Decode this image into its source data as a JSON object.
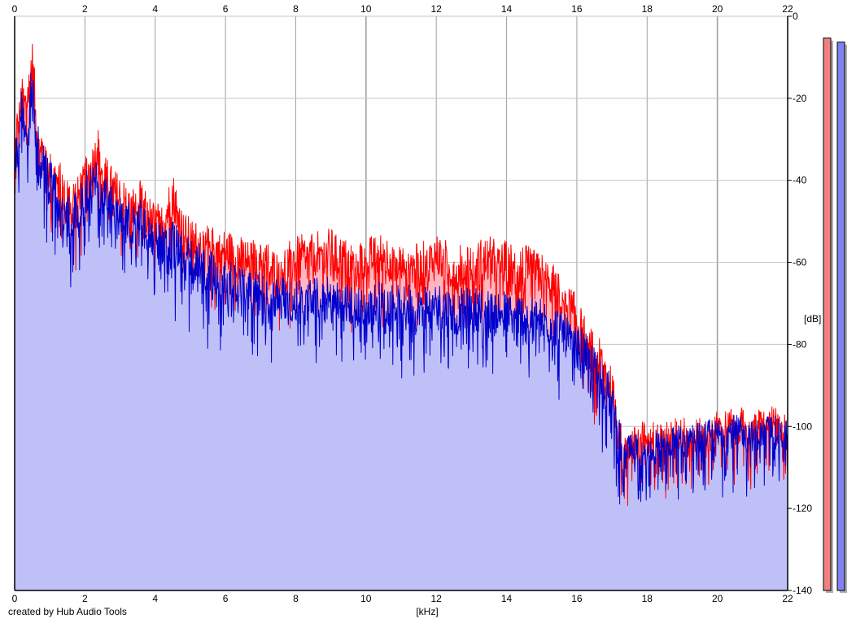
{
  "credit": "created by Hub Audio Tools",
  "chart_data": {
    "type": "area",
    "xlabel": "[kHz]",
    "ylabel": "[dB]",
    "xlim": [
      0,
      22
    ],
    "ylim": [
      -140,
      0
    ],
    "x_ticks": [
      0,
      2,
      4,
      6,
      8,
      10,
      12,
      14,
      16,
      18,
      20,
      22
    ],
    "y_ticks": [
      0,
      -20,
      -40,
      -60,
      -80,
      -100,
      -120,
      -140
    ],
    "grid": true,
    "series": [
      {
        "color": "#ff0000",
        "fill": "#ffb6c1",
        "x": [
          0,
          0.1,
          0.2,
          0.3,
          0.4,
          0.5,
          0.6,
          0.7,
          0.8,
          0.9,
          1.0,
          1.2,
          1.4,
          1.6,
          1.8,
          2.0,
          2.2,
          2.35,
          2.5,
          2.7,
          3.0,
          3.3,
          3.6,
          3.9,
          4.2,
          4.5,
          4.8,
          5.1,
          5.5,
          5.9,
          6.3,
          6.7,
          7.0,
          7.5,
          8.0,
          8.5,
          9.0,
          9.5,
          10.0,
          10.5,
          11.0,
          11.5,
          12.0,
          12.5,
          13.0,
          13.5,
          14.0,
          14.5,
          15.0,
          15.3,
          15.6,
          15.9,
          16.2,
          16.5,
          16.8,
          17.0,
          17.2,
          17.3,
          17.4,
          17.6,
          18.0,
          18.5,
          19.0,
          19.5,
          20.0,
          20.5,
          21.0,
          21.5,
          22.0
        ],
        "values": [
          -32,
          -25,
          -20,
          -22,
          -18,
          -10,
          -22,
          -28,
          -33,
          -36,
          -38,
          -40,
          -42,
          -45,
          -43,
          -40,
          -37,
          -31,
          -38,
          -41,
          -44,
          -47,
          -45,
          -50,
          -51,
          -43,
          -53,
          -55,
          -56,
          -57,
          -58,
          -60,
          -59,
          -62,
          -59,
          -58,
          -57,
          -60,
          -59,
          -58,
          -60,
          -61,
          -58,
          -61,
          -60,
          -59,
          -60,
          -61,
          -63,
          -65,
          -68,
          -72,
          -78,
          -83,
          -85,
          -92,
          -100,
          -108,
          -103,
          -104,
          -102,
          -103,
          -101,
          -102,
          -100,
          -99,
          -100,
          -99,
          -100
        ]
      },
      {
        "color": "#0000cc",
        "fill": "#c0c0f8",
        "x": [
          0,
          0.1,
          0.2,
          0.3,
          0.4,
          0.5,
          0.6,
          0.7,
          0.8,
          0.9,
          1.0,
          1.2,
          1.4,
          1.6,
          1.8,
          2.0,
          2.2,
          2.35,
          2.5,
          2.7,
          3.0,
          3.3,
          3.6,
          3.9,
          4.2,
          4.5,
          4.8,
          5.1,
          5.5,
          5.9,
          6.3,
          6.7,
          7.0,
          7.5,
          8.0,
          8.5,
          9.0,
          9.5,
          10.0,
          10.5,
          11.0,
          11.5,
          12.0,
          12.5,
          13.0,
          13.5,
          14.0,
          14.5,
          15.0,
          15.3,
          15.6,
          15.9,
          16.2,
          16.5,
          16.8,
          17.0,
          17.2,
          17.3,
          17.4,
          17.6,
          18.0,
          18.5,
          19.0,
          19.5,
          20.0,
          20.5,
          21.0,
          21.5,
          22.0
        ],
        "values": [
          -38,
          -30,
          -22,
          -26,
          -24,
          -15,
          -28,
          -33,
          -35,
          -38,
          -40,
          -44,
          -47,
          -49,
          -47,
          -44,
          -40,
          -39,
          -43,
          -46,
          -49,
          -51,
          -50,
          -54,
          -56,
          -54,
          -58,
          -60,
          -62,
          -64,
          -65,
          -66,
          -67,
          -68,
          -69,
          -68,
          -69,
          -70,
          -70,
          -70,
          -71,
          -70,
          -70,
          -72,
          -71,
          -72,
          -72,
          -73,
          -74,
          -75,
          -77,
          -80,
          -82,
          -86,
          -89,
          -94,
          -102,
          -110,
          -106,
          -106,
          -104,
          -104,
          -103,
          -102,
          -102,
          -101,
          -102,
          -101,
          -102
        ]
      }
    ],
    "meters": [
      {
        "color": "#f08080",
        "value_db": 3
      },
      {
        "color": "#8080f0",
        "value_db": 4
      }
    ]
  }
}
